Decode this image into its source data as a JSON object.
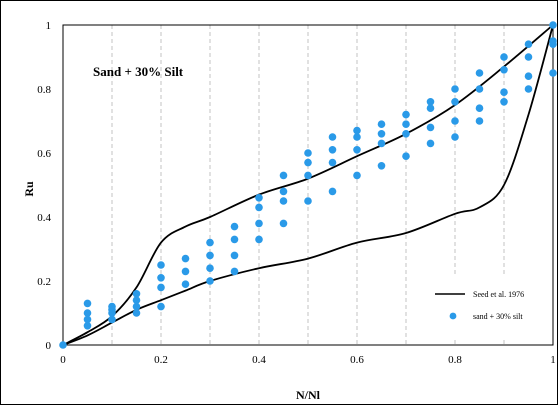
{
  "chart_data": {
    "type": "scatter",
    "annotation": "Sand + 30% Silt",
    "xlabel": "N/Nl",
    "ylabel": "Ru",
    "xlim": [
      0,
      1
    ],
    "ylim": [
      0,
      1
    ],
    "x_ticks": [
      "0",
      "0.2",
      "0.4",
      "0.6",
      "0.8",
      "1"
    ],
    "y_ticks": [
      "0",
      "0.2",
      "0.4",
      "0.6",
      "0.8",
      "1"
    ],
    "x_tick_values": [
      0,
      0.2,
      0.4,
      0.6,
      0.8,
      1
    ],
    "y_tick_values": [
      0,
      0.2,
      0.4,
      0.6,
      0.8,
      1
    ],
    "minor_x_gridlines": [
      0.1,
      0.3,
      0.5,
      0.7,
      0.9
    ],
    "grid": "dashed vertical",
    "legend_position": "bottom-right",
    "series": [
      {
        "name": "Seed et al. 1976",
        "kind": "line",
        "color": "#000000",
        "upper": [
          [
            0,
            0
          ],
          [
            0.05,
            0.04
          ],
          [
            0.1,
            0.09
          ],
          [
            0.15,
            0.18
          ],
          [
            0.2,
            0.32
          ],
          [
            0.25,
            0.37
          ],
          [
            0.3,
            0.4
          ],
          [
            0.4,
            0.47
          ],
          [
            0.5,
            0.52
          ],
          [
            0.6,
            0.59
          ],
          [
            0.7,
            0.66
          ],
          [
            0.8,
            0.75
          ],
          [
            0.9,
            0.87
          ],
          [
            1,
            1
          ]
        ],
        "lower": [
          [
            0,
            0
          ],
          [
            0.05,
            0.03
          ],
          [
            0.1,
            0.07
          ],
          [
            0.15,
            0.11
          ],
          [
            0.2,
            0.14
          ],
          [
            0.25,
            0.17
          ],
          [
            0.3,
            0.2
          ],
          [
            0.4,
            0.24
          ],
          [
            0.5,
            0.27
          ],
          [
            0.6,
            0.32
          ],
          [
            0.7,
            0.35
          ],
          [
            0.8,
            0.41
          ],
          [
            0.85,
            0.43
          ],
          [
            0.9,
            0.5
          ],
          [
            0.95,
            0.72
          ],
          [
            1,
            1
          ]
        ]
      },
      {
        "name": "sand + 30% silt",
        "kind": "scatter",
        "color": "#2a9ae8",
        "points": [
          [
            0,
            0
          ],
          [
            0.05,
            0.06
          ],
          [
            0.05,
            0.08
          ],
          [
            0.05,
            0.1
          ],
          [
            0.05,
            0.13
          ],
          [
            0.1,
            0.08
          ],
          [
            0.1,
            0.1
          ],
          [
            0.1,
            0.11
          ],
          [
            0.1,
            0.12
          ],
          [
            0.15,
            0.1
          ],
          [
            0.15,
            0.12
          ],
          [
            0.15,
            0.14
          ],
          [
            0.15,
            0.16
          ],
          [
            0.2,
            0.12
          ],
          [
            0.2,
            0.18
          ],
          [
            0.2,
            0.21
          ],
          [
            0.2,
            0.25
          ],
          [
            0.25,
            0.19
          ],
          [
            0.25,
            0.23
          ],
          [
            0.25,
            0.27
          ],
          [
            0.3,
            0.2
          ],
          [
            0.3,
            0.24
          ],
          [
            0.3,
            0.28
          ],
          [
            0.3,
            0.32
          ],
          [
            0.35,
            0.23
          ],
          [
            0.35,
            0.28
          ],
          [
            0.35,
            0.33
          ],
          [
            0.35,
            0.37
          ],
          [
            0.4,
            0.33
          ],
          [
            0.4,
            0.38
          ],
          [
            0.4,
            0.43
          ],
          [
            0.4,
            0.46
          ],
          [
            0.45,
            0.38
          ],
          [
            0.45,
            0.45
          ],
          [
            0.45,
            0.48
          ],
          [
            0.45,
            0.53
          ],
          [
            0.5,
            0.45
          ],
          [
            0.5,
            0.53
          ],
          [
            0.5,
            0.57
          ],
          [
            0.5,
            0.6
          ],
          [
            0.55,
            0.48
          ],
          [
            0.55,
            0.57
          ],
          [
            0.55,
            0.61
          ],
          [
            0.55,
            0.65
          ],
          [
            0.6,
            0.53
          ],
          [
            0.6,
            0.61
          ],
          [
            0.6,
            0.65
          ],
          [
            0.6,
            0.67
          ],
          [
            0.65,
            0.56
          ],
          [
            0.65,
            0.63
          ],
          [
            0.65,
            0.66
          ],
          [
            0.65,
            0.69
          ],
          [
            0.7,
            0.59
          ],
          [
            0.7,
            0.66
          ],
          [
            0.7,
            0.69
          ],
          [
            0.7,
            0.72
          ],
          [
            0.75,
            0.63
          ],
          [
            0.75,
            0.68
          ],
          [
            0.75,
            0.74
          ],
          [
            0.75,
            0.76
          ],
          [
            0.8,
            0.65
          ],
          [
            0.8,
            0.7
          ],
          [
            0.8,
            0.76
          ],
          [
            0.8,
            0.8
          ],
          [
            0.85,
            0.7
          ],
          [
            0.85,
            0.74
          ],
          [
            0.85,
            0.8
          ],
          [
            0.85,
            0.85
          ],
          [
            0.9,
            0.76
          ],
          [
            0.9,
            0.79
          ],
          [
            0.9,
            0.86
          ],
          [
            0.9,
            0.9
          ],
          [
            0.95,
            0.8
          ],
          [
            0.95,
            0.84
          ],
          [
            0.95,
            0.9
          ],
          [
            0.95,
            0.94
          ],
          [
            1,
            0.85
          ],
          [
            1,
            0.94
          ],
          [
            1,
            0.95
          ],
          [
            1,
            1
          ]
        ]
      }
    ]
  }
}
